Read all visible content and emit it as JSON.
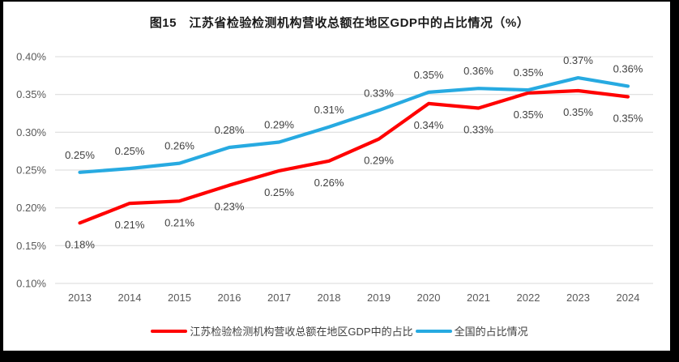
{
  "chart_data": {
    "type": "line",
    "title": "图15　江苏省检验检测机构营收总额在地区GDP中的占比情况（%）",
    "categories": [
      "2013",
      "2014",
      "2015",
      "2016",
      "2017",
      "2018",
      "2019",
      "2020",
      "2021",
      "2022",
      "2023",
      "2024"
    ],
    "y_ticks": [
      "0.40%",
      "0.35%",
      "0.30%",
      "0.25%",
      "0.20%",
      "0.15%",
      "0.10%"
    ],
    "ylim": [
      0.1,
      0.4
    ],
    "grid": "horizontal",
    "legend_position": "bottom",
    "series": [
      {
        "name": "江苏检验检测机构营收总额在地区GDP中的占比",
        "color": "#FF0000",
        "label_side": "below",
        "values": [
          0.18,
          0.21,
          0.21,
          0.23,
          0.25,
          0.26,
          0.29,
          0.34,
          0.33,
          0.35,
          0.35,
          0.35
        ],
        "labels": [
          "0.18%",
          "0.21%",
          "0.21%",
          "0.23%",
          "0.25%",
          "0.26%",
          "0.29%",
          "0.34%",
          "0.33%",
          "0.35%",
          "0.35%",
          "0.35%"
        ],
        "plot_values": [
          0.18,
          0.206,
          0.209,
          0.23,
          0.249,
          0.262,
          0.291,
          0.338,
          0.332,
          0.352,
          0.355,
          0.347
        ]
      },
      {
        "name": "全国的占比情况",
        "color": "#27AAE1",
        "label_side": "above",
        "values": [
          0.25,
          0.25,
          0.26,
          0.28,
          0.29,
          0.31,
          0.33,
          0.35,
          0.36,
          0.35,
          0.37,
          0.36
        ],
        "labels": [
          "0.25%",
          "0.25%",
          "0.26%",
          "0.28%",
          "0.29%",
          "0.31%",
          "0.33%",
          "0.35%",
          "0.36%",
          "0.35%",
          "0.37%",
          "0.36%"
        ],
        "plot_values": [
          0.247,
          0.252,
          0.259,
          0.28,
          0.287,
          0.307,
          0.329,
          0.353,
          0.358,
          0.356,
          0.372,
          0.361
        ]
      }
    ],
    "gridline_color": "#D9D9D9",
    "tick_label_color": "#595959",
    "data_label_color": "#404040"
  }
}
